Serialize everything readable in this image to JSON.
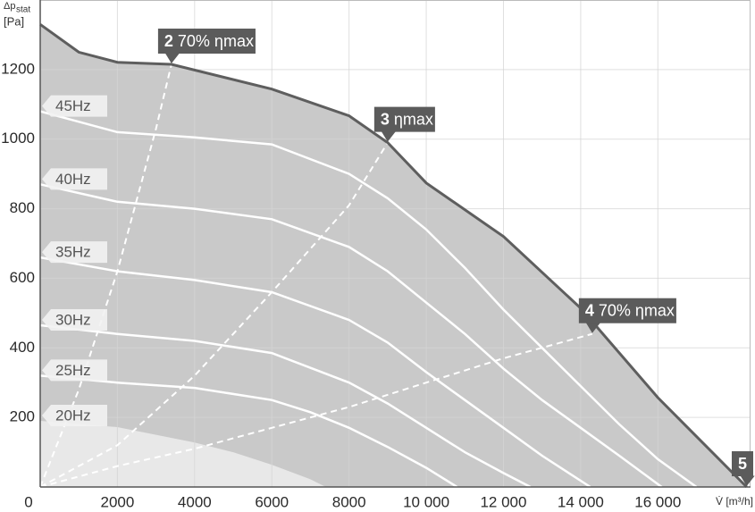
{
  "chart_data": {
    "type": "line",
    "ylabel": "Δp",
    "ylabel_sub": "stat",
    "ylabel_unit": "[Pa]",
    "xlabel": "V̇ [m³/h]",
    "xlim": [
      0,
      18400
    ],
    "ylim": [
      0,
      1400
    ],
    "xticks": [
      0,
      2000,
      4000,
      6000,
      8000,
      {
        "value": 10000,
        "label": "10 000"
      },
      {
        "value": 12000,
        "label": "12 000"
      },
      {
        "value": 14000,
        "label": "14 000"
      },
      {
        "value": 16000,
        "label": "16 000"
      }
    ],
    "yticks": [
      200,
      400,
      600,
      800,
      1000,
      1200
    ],
    "grid": true,
    "envelope": {
      "color": "#5e5e5e",
      "fill": "#c9c9c9",
      "x": [
        0,
        1000,
        2000,
        3400,
        6000,
        8000,
        9000,
        10000,
        12000,
        14000,
        16000,
        18300
      ],
      "values": [
        1330,
        1250,
        1221,
        1215,
        1144,
        1067,
        990,
        874,
        720,
        514,
        257,
        0
      ]
    },
    "series": [
      {
        "name": "20Hz",
        "color": "#e8e8e8",
        "area": true,
        "x": [
          0,
          2000,
          4000,
          5000,
          6000,
          7000,
          7400
        ],
        "values": [
          190,
          172,
          128,
          100,
          64,
          22,
          0
        ]
      },
      {
        "name": "25Hz",
        "color": "#ffffff",
        "x": [
          0,
          2000,
          4000,
          6000,
          7000,
          8000,
          9000,
          10000,
          10800
        ],
        "values": [
          320,
          300,
          285,
          250,
          215,
          170,
          115,
          55,
          0
        ]
      },
      {
        "name": "30Hz",
        "color": "#ffffff",
        "x": [
          0,
          2000,
          4000,
          6000,
          8000,
          9000,
          10000,
          11000,
          12000,
          12700
        ],
        "values": [
          465,
          440,
          420,
          385,
          300,
          240,
          170,
          100,
          40,
          0
        ]
      },
      {
        "name": "35Hz",
        "color": "#ffffff",
        "x": [
          0,
          2000,
          4000,
          6000,
          8000,
          9000,
          10000,
          11000,
          12000,
          13000,
          14250
        ],
        "values": [
          660,
          620,
          595,
          560,
          480,
          415,
          330,
          250,
          170,
          90,
          0
        ]
      },
      {
        "name": "40Hz",
        "color": "#ffffff",
        "x": [
          0,
          2000,
          4000,
          6000,
          8000,
          9000,
          10000,
          11000,
          12000,
          13000,
          14000,
          15000,
          16100
        ],
        "values": [
          870,
          820,
          800,
          770,
          690,
          620,
          530,
          440,
          340,
          250,
          170,
          90,
          0
        ]
      },
      {
        "name": "45Hz",
        "color": "#ffffff",
        "x": [
          0,
          2000,
          4000,
          6000,
          8000,
          9000,
          10000,
          11000,
          12000,
          13000,
          14000,
          15000,
          16000,
          17000
        ],
        "values": [
          1080,
          1020,
          1005,
          985,
          900,
          830,
          740,
          630,
          510,
          400,
          290,
          180,
          80,
          0
        ]
      }
    ],
    "efficiency_lines": [
      {
        "color": "#ffffff",
        "x": [
          0,
          1000,
          2000,
          3000,
          3400
        ],
        "values": [
          0,
          280,
          620,
          1030,
          1215
        ]
      },
      {
        "color": "#ffffff",
        "x": [
          0,
          2000,
          4000,
          6000,
          8000,
          9000
        ],
        "values": [
          0,
          120,
          320,
          560,
          810,
          990
        ]
      },
      {
        "color": "#ffffff",
        "x": [
          0,
          2000,
          4000,
          6000,
          8000,
          10000,
          12000,
          14300
        ],
        "values": [
          0,
          60,
          110,
          170,
          230,
          300,
          370,
          440
        ]
      }
    ],
    "annotations": [
      {
        "number": "2",
        "text": "70% ηmax",
        "x": 3400,
        "y": 1215
      },
      {
        "number": "3",
        "text": "ηmax",
        "x": 9000,
        "y": 990
      },
      {
        "number": "4",
        "text": "70% ηmax",
        "x": 14300,
        "y": 440
      },
      {
        "number": "5",
        "x": 18300,
        "y": 0
      }
    ]
  }
}
